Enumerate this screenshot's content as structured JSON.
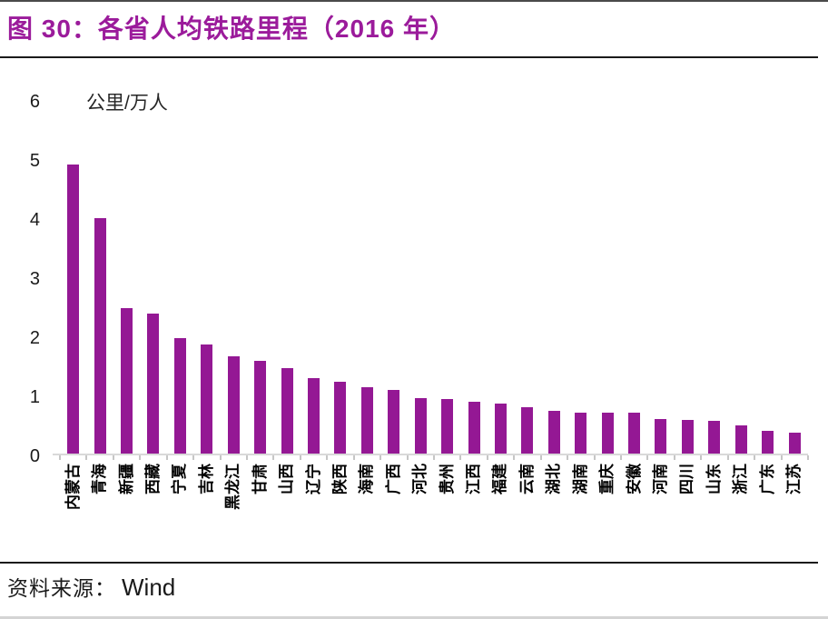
{
  "header": {
    "title": "图 30：各省人均铁路里程（2016 年）"
  },
  "chart_data": {
    "type": "bar",
    "title": "各省人均铁路里程（2016 年）",
    "unit_label": "公里/万人",
    "ylabel": "公里/万人",
    "xlabel": "",
    "ylim": [
      0,
      6
    ],
    "y_ticks": [
      0,
      1,
      2,
      3,
      4,
      5,
      6
    ],
    "grid": false,
    "legend": "none",
    "bar_color": "#941894",
    "categories": [
      "内蒙古",
      "青海",
      "新疆",
      "西藏",
      "宁夏",
      "吉林",
      "黑龙江",
      "甘肃",
      "山西",
      "辽宁",
      "陕西",
      "海南",
      "广西",
      "河北",
      "贵州",
      "江西",
      "福建",
      "云南",
      "湖北",
      "湖南",
      "重庆",
      "安徽",
      "河南",
      "四川",
      "山东",
      "浙江",
      "广东",
      "江苏"
    ],
    "values": [
      4.9,
      3.98,
      2.46,
      2.37,
      1.96,
      1.84,
      1.64,
      1.57,
      1.44,
      1.27,
      1.22,
      1.13,
      1.07,
      0.94,
      0.92,
      0.87,
      0.84,
      0.78,
      0.72,
      0.7,
      0.7,
      0.69,
      0.59,
      0.57,
      0.56,
      0.48,
      0.38,
      0.35
    ]
  },
  "footer": {
    "source_label": "资料来源：",
    "source_value": "Wind"
  },
  "colors": {
    "title": "#9B1B9B",
    "bar": "#941894",
    "axis_line": "#D9D9D9",
    "tick": "#C6C6C6",
    "text": "#1A1A1A",
    "rule": "#1A1A1A",
    "top_border": "#4A4A4A",
    "bottom_border": "#D4D4D4"
  }
}
